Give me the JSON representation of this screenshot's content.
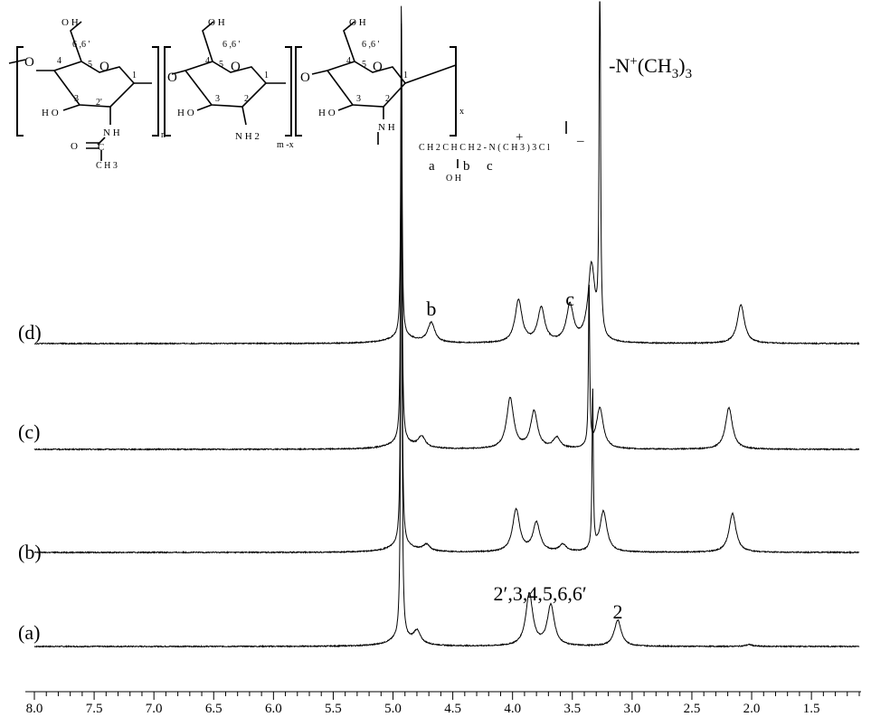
{
  "chart_data": {
    "type": "line",
    "title": "",
    "xlabel": "",
    "ylabel": "",
    "x_unit": "ppm",
    "xlim": [
      8.0,
      1.1
    ],
    "x_reversed": true,
    "x_major_ticks": [
      8.0,
      7.5,
      7.0,
      6.5,
      6.0,
      5.5,
      5.0,
      4.5,
      4.0,
      3.5,
      3.0,
      2.5,
      2.0,
      1.5
    ],
    "x_tick_labels": [
      "8.0",
      "7.5",
      "7.0",
      "6.5",
      "6.0",
      "5.5",
      "5.0",
      "4.5",
      "4.0",
      "3.5",
      "3.0",
      "2.5",
      "2.0",
      "1.5"
    ],
    "x_minor_step": 0.1,
    "legend": "none",
    "grid": false,
    "series": [
      {
        "name": "(a)",
        "peaks": [
          {
            "ppm": 4.93,
            "h": 635
          },
          {
            "ppm": 4.8,
            "h": 14
          },
          {
            "ppm": 3.86,
            "h": 58
          },
          {
            "ppm": 3.68,
            "h": 45
          },
          {
            "ppm": 3.12,
            "h": 29
          },
          {
            "ppm": 2.02,
            "h": 2
          }
        ]
      },
      {
        "name": "(b)",
        "peaks": [
          {
            "ppm": 4.93,
            "h": 560
          },
          {
            "ppm": 4.72,
            "h": 7
          },
          {
            "ppm": 3.97,
            "h": 47
          },
          {
            "ppm": 3.8,
            "h": 32
          },
          {
            "ppm": 3.58,
            "h": 8
          },
          {
            "ppm": 3.33,
            "h": 180
          },
          {
            "ppm": 3.24,
            "h": 45
          },
          {
            "ppm": 2.16,
            "h": 43
          }
        ]
      },
      {
        "name": "(c)",
        "peaks": [
          {
            "ppm": 4.93,
            "h": 475
          },
          {
            "ppm": 4.76,
            "h": 12
          },
          {
            "ppm": 4.02,
            "h": 56
          },
          {
            "ppm": 3.82,
            "h": 41
          },
          {
            "ppm": 3.63,
            "h": 12
          },
          {
            "ppm": 3.36,
            "h": 180
          },
          {
            "ppm": 3.27,
            "h": 45
          },
          {
            "ppm": 2.19,
            "h": 46
          }
        ]
      },
      {
        "name": "(d)",
        "peaks": [
          {
            "ppm": 4.93,
            "h": 375
          },
          {
            "ppm": 4.68,
            "h": 22
          },
          {
            "ppm": 3.95,
            "h": 47
          },
          {
            "ppm": 3.76,
            "h": 38
          },
          {
            "ppm": 3.52,
            "h": 41
          },
          {
            "ppm": 3.34,
            "h": 85
          },
          {
            "ppm": 3.27,
            "h": 478
          },
          {
            "ppm": 2.09,
            "h": 43
          }
        ]
      }
    ],
    "trace_labels": [
      "(a)",
      "(b)",
      "(c)",
      "(d)"
    ],
    "annotations": [
      {
        "text": "2′,3,4,5,6,6′",
        "ppm": 3.77,
        "series": "(a)"
      },
      {
        "text": "2",
        "ppm": 3.12,
        "series": "(a)"
      },
      {
        "text": "b",
        "ppm": 4.68,
        "series": "(d)"
      },
      {
        "text": "c",
        "ppm": 3.52,
        "series": "(d)"
      },
      {
        "text": "-N+(CH3)3",
        "ppm": 3.27,
        "series": "(d)"
      }
    ]
  },
  "structure": {
    "subscripts": {
      "n": "n",
      "mx": "m -x",
      "x": "x"
    },
    "unit1": {
      "oh": "O H",
      "c66": "6 ,6 '",
      "c4": "4",
      "c5": "5",
      "o_ring": "O",
      "c1": "1",
      "ho": "H O",
      "c3": "3",
      "c2p": "2'",
      "nh": "N H",
      "o_link": "O",
      "c_carbonyl": "C",
      "o_carbonyl": "O",
      "ch3": "C H 3"
    },
    "unit2": {
      "o_link": "O",
      "oh": "O H",
      "c66": "6 ,6 '",
      "c4": "4",
      "c5": "5",
      "o_ring": "O",
      "c1": "1",
      "ho": "H O",
      "c3": "3",
      "c2": "2",
      "nh2": "N H 2"
    },
    "unit3": {
      "o_link": "O",
      "oh": "O H",
      "c66": "6 ,6 '",
      "c4": "4",
      "c5": "5",
      "o_ring": "O",
      "c1": "1",
      "ho": "H O",
      "c3": "3",
      "c2": "2",
      "nh": "N H"
    },
    "side_chain": {
      "chain": "C H 2 C H C H 2 - N ( C H 3 ) 3 C l",
      "plus": "+",
      "minus": "–",
      "a": "a",
      "b": "b",
      "c": "c",
      "oh": "O H",
      "nme3_label": "-N+(CH3)3"
    }
  }
}
